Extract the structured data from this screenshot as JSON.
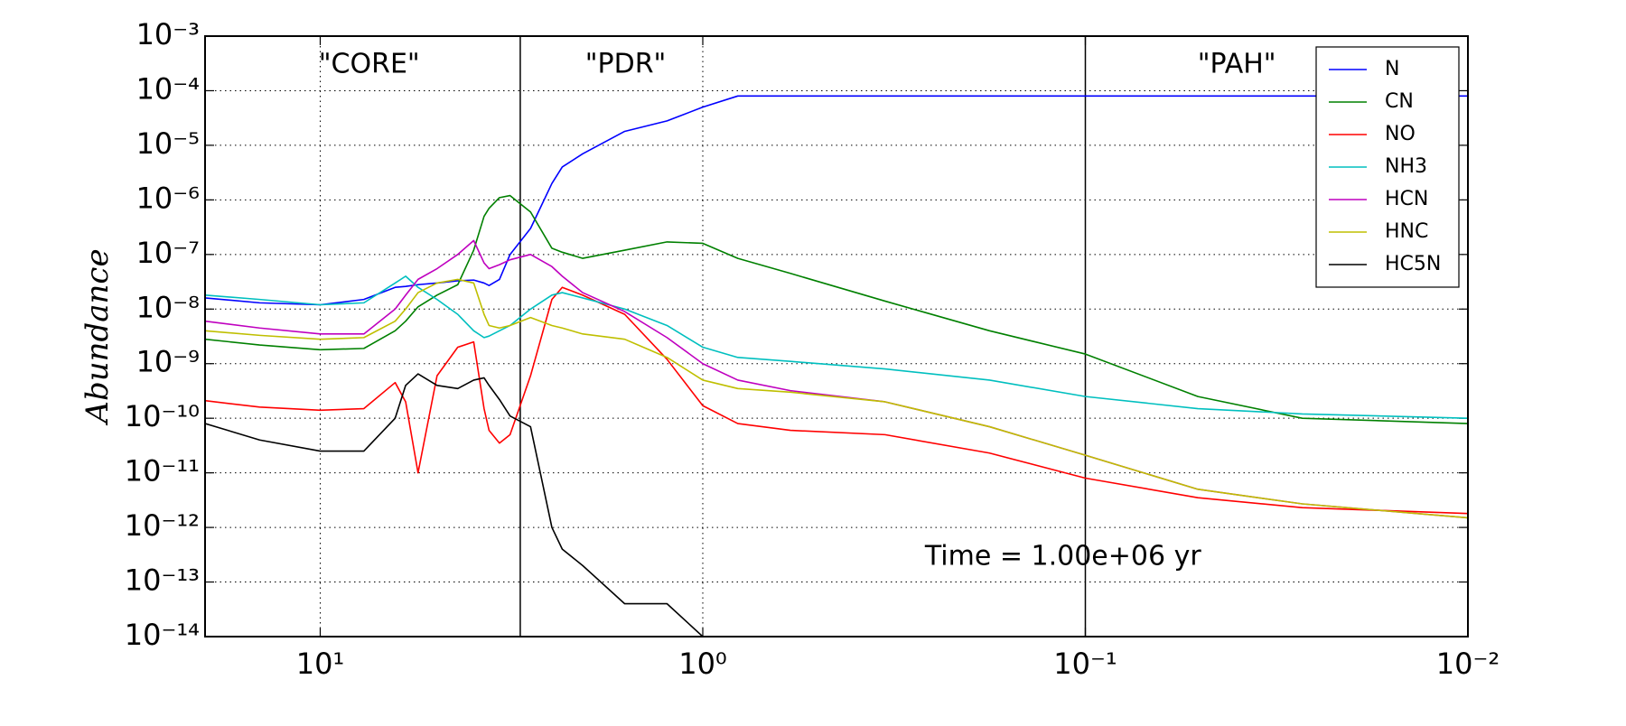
{
  "chart_data": {
    "type": "line",
    "ylabel": "Abundance",
    "annotation": "Time = 1.00e+06 yr",
    "regions": [
      "\"CORE\"",
      "\"PDR\"",
      "\"PAH\""
    ],
    "vlines": [
      3,
      0.1
    ],
    "xscale": "log",
    "yscale": "log",
    "grid": true,
    "legend": "upper right",
    "xlim": [
      20,
      0.01
    ],
    "xticks": [
      {
        "value": 10,
        "label": "10¹"
      },
      {
        "value": 1,
        "label": "10⁰"
      },
      {
        "value": 0.1,
        "label": "10⁻¹"
      },
      {
        "value": 0.01,
        "label": "10⁻²"
      }
    ],
    "ylim": [
      1e-14,
      0.001
    ],
    "yticks": [
      {
        "value": 1e-14,
        "label": "10⁻¹⁴"
      },
      {
        "value": 1e-13,
        "label": "10⁻¹³"
      },
      {
        "value": 1e-12,
        "label": "10⁻¹²"
      },
      {
        "value": 1e-11,
        "label": "10⁻¹¹"
      },
      {
        "value": 1e-10,
        "label": "10⁻¹⁰"
      },
      {
        "value": 1e-09,
        "label": "10⁻⁹"
      },
      {
        "value": 1e-08,
        "label": "10⁻⁸"
      },
      {
        "value": 1e-07,
        "label": "10⁻⁷"
      },
      {
        "value": 1e-06,
        "label": "10⁻⁶"
      },
      {
        "value": 1e-05,
        "label": "10⁻⁵"
      },
      {
        "value": 0.0001,
        "label": "10⁻⁴"
      },
      {
        "value": 0.001,
        "label": "10⁻³"
      }
    ],
    "x": [
      20,
      14.4,
      10,
      7.69,
      6.37,
      5.98,
      5.55,
      4.95,
      4.37,
      3.97,
      3.73,
      3.62,
      3.4,
      3.19,
      2.82,
      2.48,
      2.33,
      2.06,
      1.6,
      1.24,
      1.0,
      0.81,
      0.59,
      0.334,
      0.178,
      0.1,
      0.0508,
      0.0271,
      0.01
    ],
    "series": [
      {
        "name": "N",
        "color": "#0000ff",
        "values": [
          1.6e-08,
          1.3e-08,
          1.2e-08,
          1.5e-08,
          2.5e-08,
          2.6e-08,
          2.8e-08,
          3e-08,
          3.3e-08,
          3.4e-08,
          3e-08,
          2.7e-08,
          3.5e-08,
          1e-07,
          3e-07,
          2e-06,
          4e-06,
          7e-06,
          1.8e-05,
          2.8e-05,
          5e-05,
          8e-05,
          8e-05,
          8e-05,
          8e-05,
          8e-05,
          8e-05,
          8e-05,
          8e-05
        ]
      },
      {
        "name": "CN",
        "color": "#008000",
        "values": [
          2.8e-09,
          2.2e-09,
          1.8e-09,
          1.9e-09,
          4e-09,
          6e-09,
          1.1e-08,
          1.8e-08,
          2.8e-08,
          1.2e-07,
          5e-07,
          7e-07,
          1.1e-06,
          1.2e-06,
          6e-07,
          1.3e-07,
          1.1e-07,
          8.5e-08,
          1.2e-07,
          1.7e-07,
          1.6e-07,
          8.5e-08,
          4.5e-08,
          1.4e-08,
          4e-09,
          1.5e-09,
          2.5e-10,
          1e-10,
          8e-11
        ]
      },
      {
        "name": "NO",
        "color": "#ff0000",
        "values": [
          2.1e-10,
          1.6e-10,
          1.4e-10,
          1.5e-10,
          4.5e-10,
          2e-10,
          1e-11,
          6e-10,
          2e-09,
          2.5e-09,
          1.5e-10,
          6e-11,
          3.5e-11,
          5e-11,
          6e-10,
          1.5e-08,
          2.5e-08,
          1.8e-08,
          8e-09,
          1.2e-09,
          1.7e-10,
          8e-11,
          6e-11,
          5e-11,
          2.3e-11,
          8e-12,
          3.5e-12,
          2.3e-12,
          1.8e-12
        ]
      },
      {
        "name": "NH3",
        "color": "#00bfbf",
        "values": [
          1.8e-08,
          1.5e-08,
          1.2e-08,
          1.3e-08,
          3e-08,
          4e-08,
          2.5e-08,
          1.5e-08,
          8e-09,
          4e-09,
          3e-09,
          3.2e-09,
          4e-09,
          5e-09,
          1e-08,
          1.8e-08,
          2e-08,
          1.6e-08,
          1e-08,
          5e-09,
          2e-09,
          1.3e-09,
          1.1e-09,
          8e-10,
          5e-10,
          2.5e-10,
          1.5e-10,
          1.2e-10,
          1e-10
        ]
      },
      {
        "name": "HCN",
        "color": "#bf00bf",
        "values": [
          6e-09,
          4.5e-09,
          3.5e-09,
          3.5e-09,
          1e-08,
          1.8e-08,
          3.5e-08,
          5.5e-08,
          1e-07,
          1.8e-07,
          7e-08,
          5.5e-08,
          6.5e-08,
          8e-08,
          1e-07,
          6e-08,
          4e-08,
          2e-08,
          9e-09,
          3e-09,
          1e-09,
          5e-10,
          3.2e-10,
          2e-10,
          7e-11,
          2.1e-11,
          5e-12,
          2.7e-12,
          1.5e-12
        ]
      },
      {
        "name": "HNC",
        "color": "#bfbf00",
        "values": [
          4e-09,
          3.3e-09,
          2.8e-09,
          3e-09,
          6e-09,
          1e-08,
          2e-08,
          3e-08,
          3.5e-08,
          3e-08,
          8e-09,
          5e-09,
          4.5e-09,
          5e-09,
          7e-09,
          5e-09,
          4.5e-09,
          3.5e-09,
          2.8e-09,
          1.3e-09,
          5e-10,
          3.5e-10,
          3e-10,
          2e-10,
          7e-11,
          2.1e-11,
          5e-12,
          2.7e-12,
          1.5e-12
        ]
      },
      {
        "name": "HC5N",
        "color": "#000000",
        "values": [
          8e-11,
          4e-11,
          2.5e-11,
          2.5e-11,
          1e-10,
          4e-10,
          6.5e-10,
          4e-10,
          3.5e-10,
          5e-10,
          5.5e-10,
          4e-10,
          2.2e-10,
          1.1e-10,
          7e-11,
          1e-12,
          4e-13,
          2e-13,
          4e-14,
          4e-14,
          1e-14,
          null,
          null,
          null,
          null,
          null,
          null,
          null,
          null
        ]
      }
    ]
  }
}
